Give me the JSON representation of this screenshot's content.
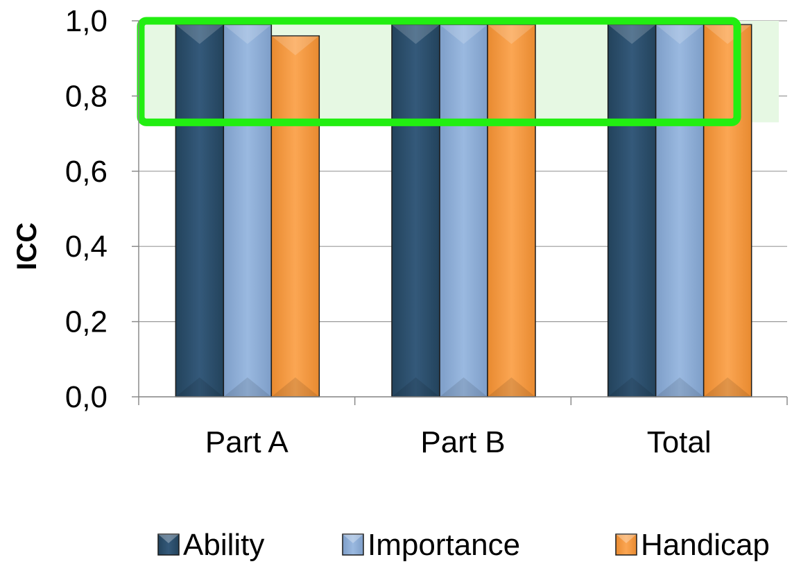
{
  "chart_data": {
    "type": "bar",
    "categories": [
      "Part A",
      "Part B",
      "Total"
    ],
    "series": [
      {
        "name": "Ability",
        "values": [
          0.99,
          0.99,
          0.99
        ],
        "color": "#2f5470"
      },
      {
        "name": "Importance",
        "values": [
          0.99,
          0.99,
          0.99
        ],
        "color": "#8eaed8"
      },
      {
        "name": "Handicap",
        "values": [
          0.96,
          0.99,
          0.99
        ],
        "color": "#f79c45"
      }
    ],
    "ylabel": "ICC",
    "xlabel": "",
    "ylim": [
      0,
      1.0
    ],
    "yticks": [
      "0,0",
      "0,2",
      "0,4",
      "0,6",
      "0,8",
      "1,0"
    ],
    "grid": true,
    "legend_position": "bottom",
    "highlight": {
      "y_range": [
        0.73,
        1.0
      ],
      "border_color": "#22ee11",
      "fill_color": "#e6f8e3"
    }
  }
}
